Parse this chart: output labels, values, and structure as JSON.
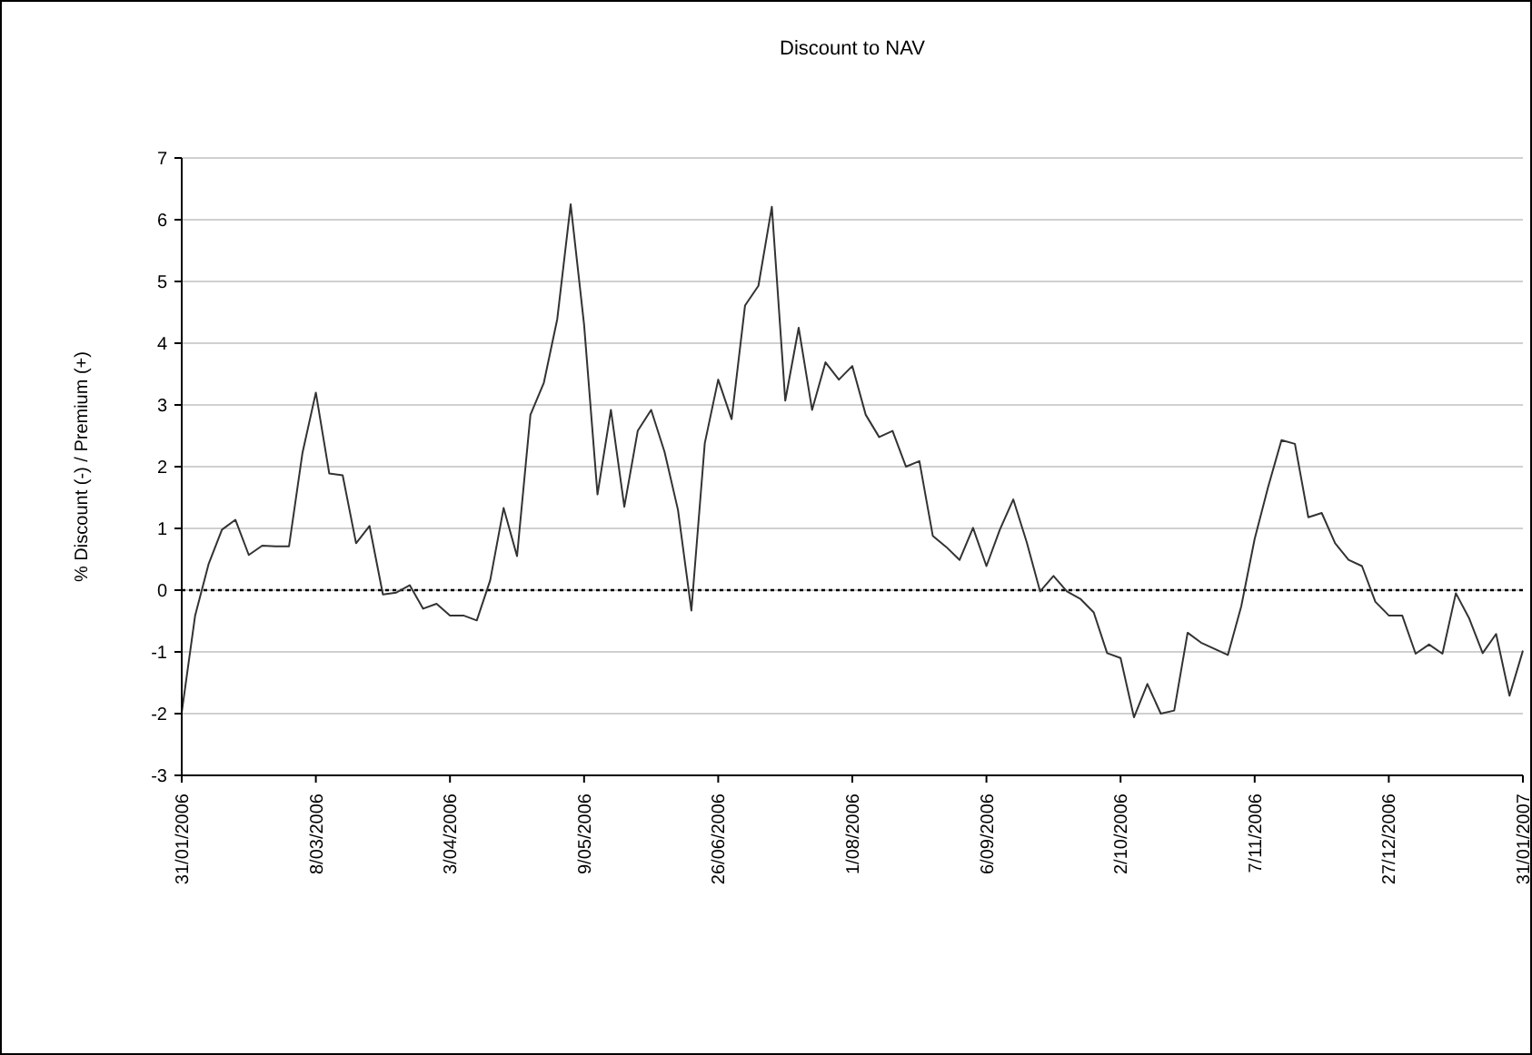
{
  "chart_data": {
    "type": "line",
    "title": "Discount to NAV",
    "ylabel": "% Discount (-) / Premium (+)",
    "categories": [
      "31/01/2006",
      null,
      null,
      null,
      null,
      null,
      null,
      null,
      null,
      null,
      "8/03/2006",
      null,
      null,
      null,
      null,
      null,
      null,
      null,
      null,
      null,
      "3/04/2006",
      null,
      null,
      null,
      null,
      null,
      null,
      null,
      null,
      null,
      "9/05/2006",
      null,
      null,
      null,
      null,
      null,
      null,
      null,
      null,
      null,
      "26/06/2006",
      null,
      null,
      null,
      null,
      null,
      null,
      null,
      null,
      null,
      "1/08/2006",
      null,
      null,
      null,
      null,
      null,
      null,
      null,
      null,
      null,
      "6/09/2006",
      null,
      null,
      null,
      null,
      null,
      null,
      null,
      null,
      null,
      "2/10/2006",
      null,
      null,
      null,
      null,
      null,
      null,
      null,
      null,
      null,
      "7/11/2006",
      null,
      null,
      null,
      null,
      null,
      null,
      null,
      null,
      null,
      "27/12/2006",
      null,
      null,
      null,
      null,
      null,
      null,
      null,
      null,
      null,
      "31/01/2007"
    ],
    "ylim": [
      -3,
      7
    ],
    "yticks": [
      -3,
      -2,
      -1,
      0,
      1,
      2,
      3,
      4,
      5,
      6,
      7
    ],
    "grid": "y",
    "marker": "none",
    "line_style": "solid",
    "ref_lines": [
      {
        "axis": "y",
        "value": 0,
        "color": "#000000",
        "line_style": "dotted"
      }
    ],
    "series": [
      {
        "color": "#333333",
        "values": [
          -1.98,
          -0.41,
          0.42,
          0.98,
          1.14,
          0.57,
          0.72,
          0.71,
          0.71,
          2.22,
          3.2,
          1.89,
          1.86,
          0.76,
          1.04,
          -0.07,
          -0.04,
          0.08,
          -0.3,
          -0.22,
          -0.41,
          -0.41,
          -0.49,
          0.16,
          1.33,
          0.55,
          2.84,
          3.36,
          4.39,
          6.25,
          4.3,
          1.55,
          2.92,
          1.35,
          2.58,
          2.92,
          2.24,
          1.3,
          -0.33,
          2.38,
          3.41,
          2.77,
          4.61,
          4.93,
          6.21,
          3.07,
          4.25,
          2.92,
          3.69,
          3.41,
          3.63,
          2.84,
          2.48,
          2.58,
          2.0,
          2.09,
          0.88,
          0.7,
          0.49,
          1.01,
          0.39,
          0.98,
          1.47,
          0.78,
          -0.02,
          0.23,
          -0.02,
          -0.14,
          -0.36,
          -1.02,
          -1.1,
          -2.06,
          -1.52,
          -2.0,
          -1.95,
          -0.69,
          -0.85,
          -0.95,
          -1.05,
          -0.26,
          0.83,
          1.67,
          2.43,
          2.37,
          1.18,
          1.25,
          0.76,
          0.49,
          0.39,
          -0.19,
          -0.41,
          -0.41,
          -1.03,
          -0.88,
          -1.03,
          -0.05,
          -0.46,
          -1.02,
          -0.71,
          -1.71,
          -0.98
        ]
      }
    ]
  }
}
